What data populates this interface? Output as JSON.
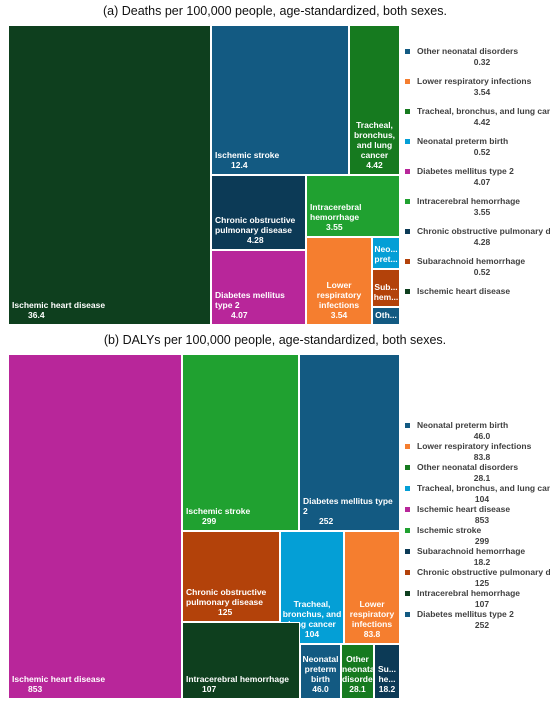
{
  "chart_data": [
    {
      "type": "treemap",
      "title": "(a) Deaths per 100,000 people, age-standardized, both sexes.",
      "tiles": [
        {
          "name": "Ischemic heart disease",
          "value": "36.4",
          "color": "#0e3f1e"
        },
        {
          "name": "Ischemic stroke",
          "value": "12.4",
          "color": "#135a82"
        },
        {
          "name": "Tracheal, bronchus, and lung cancer",
          "display_name": "Tracheal,\nbronchus,\nand lung\ncancer",
          "value": "4.42",
          "color": "#167a1f"
        },
        {
          "name": "Chronic obstructive pulmonary disease",
          "display_name": "Chronic obstructive\npulmonary disease",
          "value": "4.28",
          "color": "#0c3a56"
        },
        {
          "name": "Intracerebral hemorrhage",
          "value": "3.55",
          "color": "#20a130"
        },
        {
          "name": "Diabetes mellitus type 2",
          "value": "4.07",
          "color": "#b8269a"
        },
        {
          "name": "Lower respiratory infections",
          "display_name": "Lower respiratory\ninfections",
          "value": "3.54",
          "color": "#f57e2f"
        },
        {
          "name": "Neonatal preterm birth",
          "display_name": "Neo...\npret...",
          "value": "",
          "color": "#049fd6"
        },
        {
          "name": "Subarachnoid hemorrhage",
          "display_name": "Sub...\nhem...",
          "value": "",
          "color": "#b3420a"
        },
        {
          "name": "Other neonatal disorders",
          "display_name": "Oth...",
          "value": "",
          "color": "#135a82"
        }
      ],
      "legend": [
        {
          "name": "Other neonatal disorders",
          "value": "0.32",
          "color": "#135a82"
        },
        {
          "name": "Lower respiratory infections",
          "value": "3.54",
          "color": "#f57e2f"
        },
        {
          "name": "Tracheal, bronchus, and lung cancer",
          "value": "4.42",
          "color": "#167a1f"
        },
        {
          "name": "Neonatal preterm birth",
          "value": "0.52",
          "color": "#049fd6"
        },
        {
          "name": "Diabetes mellitus type 2",
          "value": "4.07",
          "color": "#b8269a"
        },
        {
          "name": "Intracerebral hemorrhage",
          "value": "3.55",
          "color": "#20a130"
        },
        {
          "name": "Chronic obstructive pulmonary disease",
          "value": "4.28",
          "color": "#0c3a56"
        },
        {
          "name": "Subarachnoid hemorrhage",
          "value": "0.52",
          "color": "#b3420a"
        },
        {
          "name": "Ischemic heart disease",
          "value": "",
          "color": "#0e3f1e"
        }
      ]
    },
    {
      "type": "treemap",
      "title": "(b) DALYs per 100,000 people, age-standardized, both sexes.",
      "tiles": [
        {
          "name": "Ischemic heart disease",
          "value": "853",
          "color": "#b8269a"
        },
        {
          "name": "Ischemic stroke",
          "value": "299",
          "color": "#20a130"
        },
        {
          "name": "Diabetes mellitus type 2",
          "value": "252",
          "color": "#135a82"
        },
        {
          "name": "Chronic obstructive pulmonary disease",
          "display_name": "Chronic obstructive\npulmonary disease",
          "value": "125",
          "color": "#b3420a"
        },
        {
          "name": "Tracheal, bronchus, and lung cancer",
          "display_name": "Tracheal,\nbronchus, and\nlung cancer",
          "value": "104",
          "color": "#049fd6"
        },
        {
          "name": "Lower respiratory infections",
          "display_name": "Lower\nrespiratory\ninfections",
          "value": "83.8",
          "color": "#f57e2f"
        },
        {
          "name": "Intracerebral hemorrhage",
          "value": "107",
          "color": "#0e3f1e"
        },
        {
          "name": "Neonatal preterm birth",
          "display_name": "Neonatal\npreterm birth",
          "value": "46.0",
          "color": "#135a82"
        },
        {
          "name": "Other neonatal disorders",
          "display_name": "Other\nneonatal\ndisorders",
          "value": "28.1",
          "color": "#167a1f"
        },
        {
          "name": "Subarachnoid hemorrhage",
          "display_name": "Su...\nhe...",
          "value": "18.2",
          "color": "#0c3a56"
        }
      ],
      "legend": [
        {
          "name": "Neonatal preterm birth",
          "value": "46.0",
          "color": "#135a82"
        },
        {
          "name": "Lower respiratory infections",
          "value": "83.8",
          "color": "#f57e2f"
        },
        {
          "name": "Other neonatal disorders",
          "value": "28.1",
          "color": "#167a1f"
        },
        {
          "name": "Tracheal, bronchus, and lung cancer",
          "value": "104",
          "color": "#049fd6"
        },
        {
          "name": "Ischemic heart disease",
          "value": "853",
          "color": "#b8269a"
        },
        {
          "name": "Ischemic stroke",
          "value": "299",
          "color": "#20a130"
        },
        {
          "name": "Subarachnoid hemorrhage",
          "value": "18.2",
          "color": "#0c3a56"
        },
        {
          "name": "Chronic obstructive pulmonary disease",
          "value": "125",
          "color": "#b3420a"
        },
        {
          "name": "Intracerebral hemorrhage",
          "value": "107",
          "color": "#0e3f1e"
        },
        {
          "name": "Diabetes mellitus type 2",
          "value": "252",
          "color": "#135a82"
        }
      ]
    }
  ]
}
